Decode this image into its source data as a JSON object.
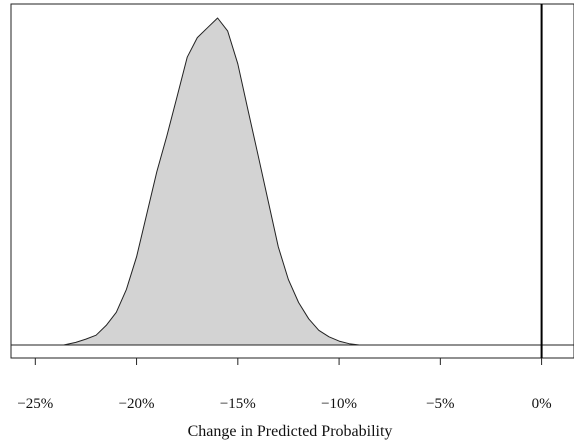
{
  "chart_data": {
    "type": "area",
    "title": "",
    "xlabel": "Change in Predicted Probability",
    "ylabel": "",
    "xlim": [
      -26.2,
      1.6
    ],
    "ylim": [
      0,
      1.06
    ],
    "grid": false,
    "y_ticks_shown": false,
    "fill_color": "#d3d3d3",
    "line_color": "#222222",
    "reference_line": {
      "x": 0,
      "color": "#000000"
    },
    "x_ticks": [
      {
        "value": -25,
        "label": "−25%"
      },
      {
        "value": -20,
        "label": "−20%"
      },
      {
        "value": -15,
        "label": "−15%"
      },
      {
        "value": -10,
        "label": "−10%"
      },
      {
        "value": -5,
        "label": "−5%"
      },
      {
        "value": 0,
        "label": "0%"
      }
    ],
    "series": [
      {
        "x": [
          -23.6,
          -23.0,
          -22.5,
          -22.0,
          -21.5,
          -21.0,
          -20.5,
          -20.0,
          -19.5,
          -19.0,
          -18.5,
          -18.0,
          -17.5,
          -17.0,
          -16.5,
          -16.0,
          -15.5,
          -15.0,
          -14.5,
          -14.0,
          -13.5,
          -13.0,
          -12.5,
          -12.0,
          -11.5,
          -11.0,
          -10.5,
          -10.0,
          -9.5,
          -9.0
        ],
        "y": [
          0.0,
          0.008,
          0.018,
          0.03,
          0.06,
          0.1,
          0.17,
          0.27,
          0.4,
          0.53,
          0.64,
          0.76,
          0.88,
          0.94,
          0.97,
          1.0,
          0.96,
          0.86,
          0.72,
          0.58,
          0.44,
          0.3,
          0.2,
          0.13,
          0.08,
          0.045,
          0.025,
          0.012,
          0.004,
          0.0
        ]
      }
    ]
  }
}
